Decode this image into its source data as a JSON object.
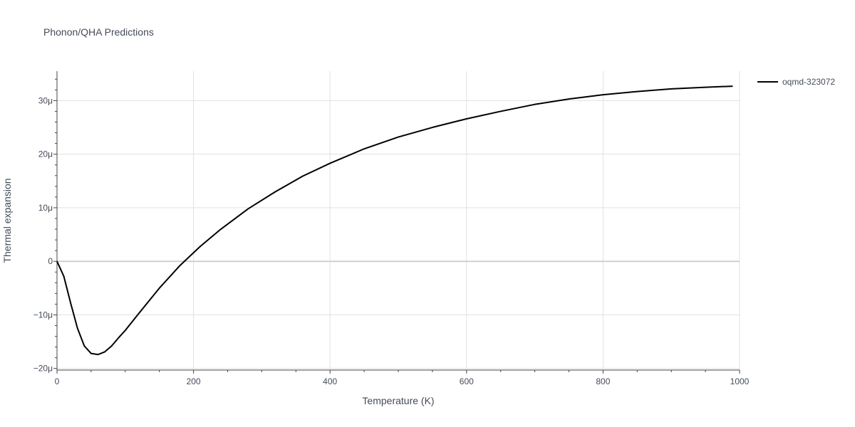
{
  "chart_data": {
    "type": "line",
    "title": "Phonon/QHA Predictions",
    "xlabel": "Temperature (K)",
    "ylabel": "Thermal expansion",
    "xlim": [
      0,
      1000
    ],
    "ylim": [
      -2.03e-05,
      3.55e-05
    ],
    "grid": true,
    "legend_position": "right",
    "x_ticks": [
      0,
      200,
      400,
      600,
      800,
      1000
    ],
    "x_tick_labels": [
      "0",
      "200",
      "400",
      "600",
      "800",
      "1000"
    ],
    "y_ticks": [
      -2e-05,
      -1e-05,
      0,
      1e-05,
      2e-05,
      3e-05
    ],
    "y_tick_labels": [
      "−20μ",
      "−10μ",
      "0",
      "10μ",
      "20μ",
      "30μ"
    ],
    "series": [
      {
        "name": "oqmd-323072",
        "color": "#000000",
        "x": [
          0,
          10,
          20,
          30,
          40,
          50,
          60,
          70,
          80,
          90,
          100,
          120,
          150,
          180,
          200,
          210,
          240,
          280,
          320,
          360,
          400,
          450,
          500,
          550,
          600,
          650,
          700,
          750,
          800,
          850,
          900,
          950,
          990
        ],
        "y": [
          0,
          -2.8e-06,
          -7.8e-06,
          -1.25e-05,
          -1.58e-05,
          -1.72e-05,
          -1.74e-05,
          -1.69e-05,
          -1.58e-05,
          -1.43e-05,
          -1.29e-05,
          -9.7e-06,
          -5e-06,
          -8e-07,
          1.6e-06,
          2.8e-06,
          6e-06,
          9.8e-06,
          1.3e-05,
          1.59e-05,
          1.83e-05,
          2.1e-05,
          2.32e-05,
          2.5e-05,
          2.66e-05,
          2.8e-05,
          2.93e-05,
          3.03e-05,
          3.11e-05,
          3.17e-05,
          3.22e-05,
          3.25e-05,
          3.27e-05
        ]
      }
    ]
  }
}
